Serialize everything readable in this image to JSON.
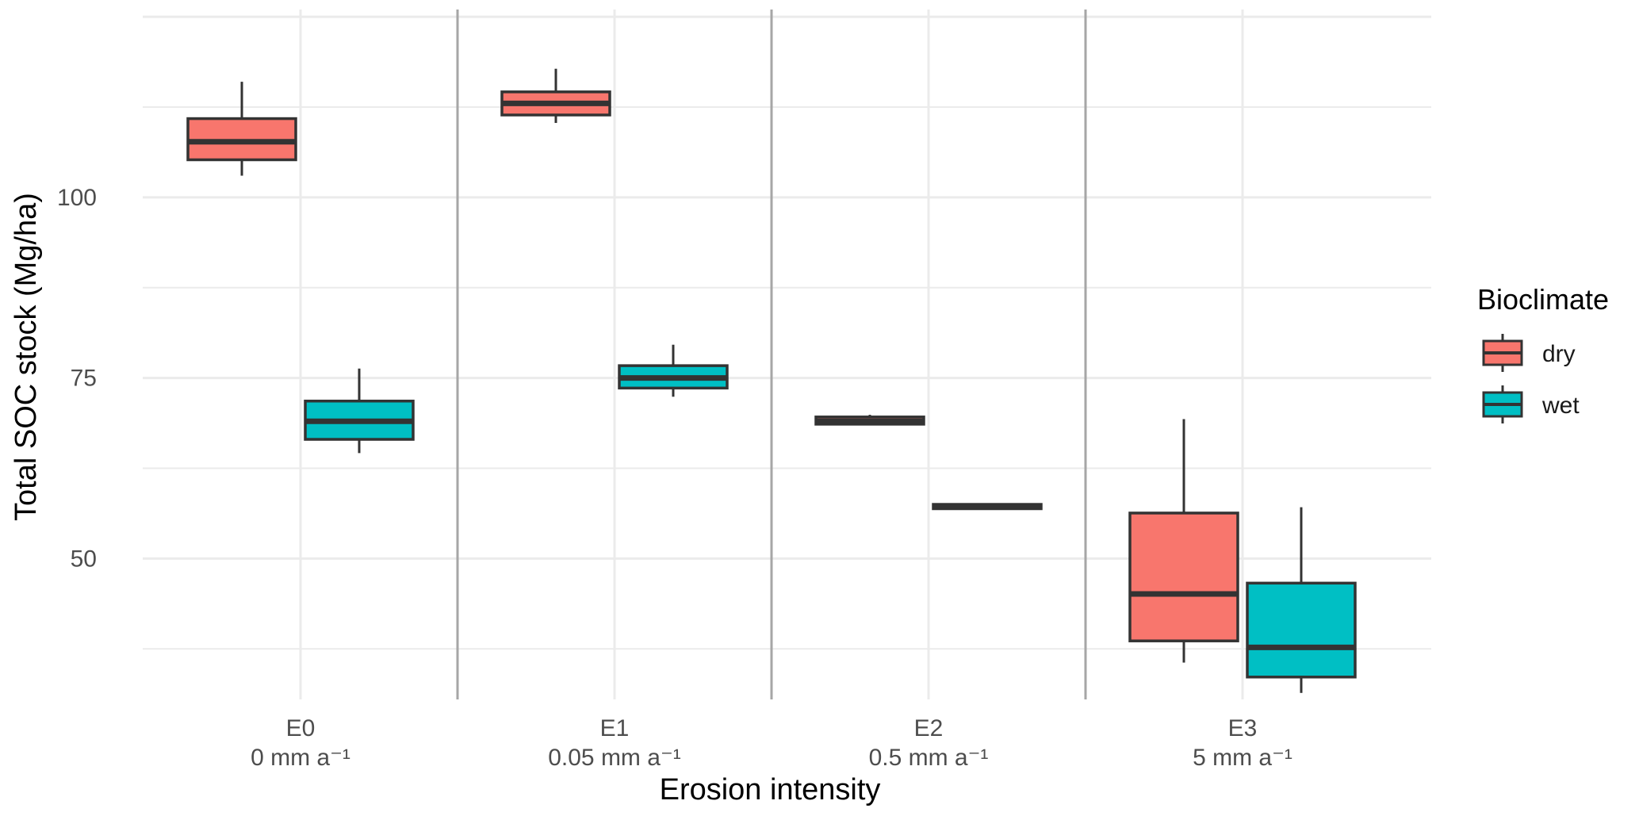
{
  "chart_data": {
    "type": "boxplot",
    "title": "",
    "xlabel": "Erosion intensity",
    "ylabel": "Total SOC stock (Mg/ha)",
    "ylim": [
      30.5,
      126
    ],
    "yticks": [
      50,
      75,
      100
    ],
    "categories": [
      {
        "code": "E0",
        "rate": "0 mm a⁻¹"
      },
      {
        "code": "E1",
        "rate": "0.05 mm a⁻¹"
      },
      {
        "code": "E2",
        "rate": "0.5 mm a⁻¹"
      },
      {
        "code": "E3",
        "rate": "5 mm a⁻¹"
      }
    ],
    "legend": {
      "title": "Bioclimate",
      "placement": "right",
      "entries": [
        {
          "name": "dry",
          "color": "#F8766D"
        },
        {
          "name": "wet",
          "color": "#00BFC4"
        }
      ]
    },
    "series": [
      {
        "name": "dry",
        "color": "#F8766D",
        "boxes": [
          {
            "category": "E0",
            "min": 103,
            "q1": 105.2,
            "median": 107.7,
            "q3": 110.9,
            "max": 116
          },
          {
            "category": "E1",
            "min": 110.3,
            "q1": 111.4,
            "median": 113,
            "q3": 114.6,
            "max": 117.8
          },
          {
            "category": "E2",
            "min": 68.6,
            "q1": 68.6,
            "median": 69,
            "q3": 69.6,
            "max": 69.9
          },
          {
            "category": "E3",
            "min": 35.6,
            "q1": 38.6,
            "median": 45.1,
            "q3": 56.3,
            "max": 69.3
          }
        ]
      },
      {
        "name": "wet",
        "color": "#00BFC4",
        "boxes": [
          {
            "category": "E0",
            "min": 64.6,
            "q1": 66.5,
            "median": 69,
            "q3": 71.8,
            "max": 76.3
          },
          {
            "category": "E1",
            "min": 72.4,
            "q1": 73.6,
            "median": 75,
            "q3": 76.7,
            "max": 79.6
          },
          {
            "category": "E2",
            "min": 56.9,
            "q1": 56.9,
            "median": 57.2,
            "q3": 57.5,
            "max": 57.5
          },
          {
            "category": "E3",
            "min": 31.4,
            "q1": 33.6,
            "median": 37.7,
            "q3": 46.6,
            "max": 57.1
          }
        ]
      }
    ],
    "separators_between_categories": true,
    "grid": true
  }
}
